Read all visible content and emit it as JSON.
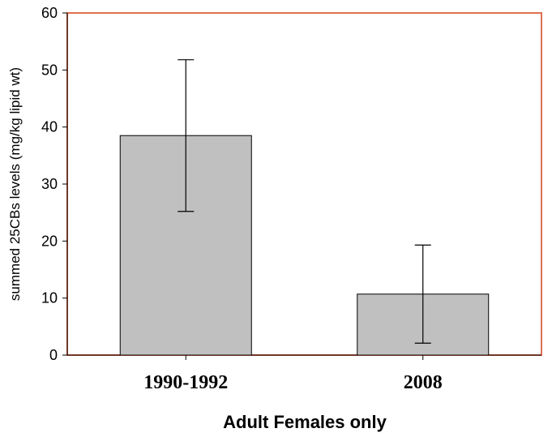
{
  "chart_data": {
    "type": "bar",
    "categories": [
      "1990-1992",
      "2008"
    ],
    "values": [
      38.5,
      10.7
    ],
    "error_low": [
      25.2,
      2.1
    ],
    "error_high": [
      51.8,
      19.3
    ],
    "xlabel": "Adult Females only",
    "ylabel": "summed 25CBs levels (mg/kg lipid wt)",
    "ylim": [
      0,
      60
    ],
    "yticks": [
      0,
      10,
      20,
      30,
      40,
      50,
      60
    ],
    "grid": false,
    "legend": "none",
    "colors": {
      "bar_fill": "#c0c0c0",
      "bar_stroke": "#000000",
      "frame": "#e07050"
    }
  }
}
